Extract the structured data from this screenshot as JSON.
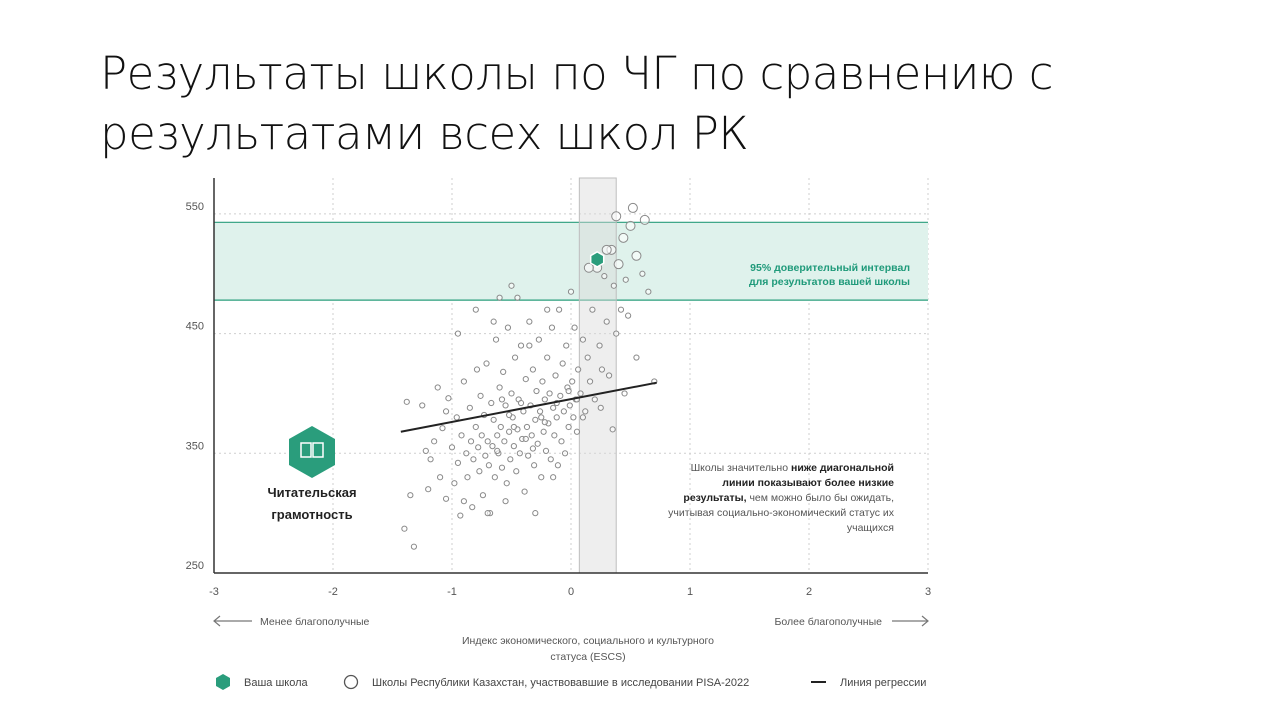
{
  "slide": {
    "title_lines": [
      "Результаты школы по ЧГ по сравнению с",
      "результатами всех школ РК"
    ]
  },
  "chart_data": {
    "type": "scatter",
    "xlim": [
      -3,
      3
    ],
    "ylim": [
      250,
      580
    ],
    "x_ticks": [
      "-3",
      "-2",
      "-1",
      "0",
      "1",
      "2",
      "3"
    ],
    "y_ticks": [
      "550",
      "450",
      "350",
      "250"
    ],
    "y_tick_values": [
      550,
      450,
      350,
      250
    ],
    "grid": true,
    "ci_band": [
      478,
      543
    ],
    "ci_label": [
      "95% доверительный интервал",
      "для результатов вашей школы"
    ],
    "escs_band": [
      0.07,
      0.38
    ],
    "your_school": {
      "x": 0.22,
      "y": 512
    },
    "regression": {
      "x": [
        -1.43,
        0.72
      ],
      "y": [
        368,
        409
      ]
    },
    "direction_left": "Менее благополучные",
    "direction_right": "Более благополучные",
    "xlabel_lines": [
      "Индекс экономического, социального и культурного",
      "статуса (ESCS)"
    ],
    "domain_label": [
      "Читательская",
      "грамотность"
    ],
    "annotation": {
      "l1a": "Школы значительно ",
      "l1b": "ниже диагональной",
      "l2": "линии показывают более низкие",
      "l3a": "результаты,",
      "l3b": " чем можно было бы ожидать,",
      "l4": "учитывая социально-экономический статус их",
      "l5": "учащихся"
    },
    "legend": {
      "your_school": "Ваша школа",
      "schools": "Школы Республики Казахстан, участвовавшие в исследовании PISA-2022",
      "regression": "Линия регрессии"
    },
    "colors": {
      "accent": "#2a9d7c",
      "band": "#dff2ec",
      "grid": "#cfcfcf",
      "point": "#8a8a8a",
      "line": "#222222"
    },
    "school_points": [
      [
        -1.38,
        393
      ],
      [
        -1.35,
        315
      ],
      [
        -1.4,
        287
      ],
      [
        -1.32,
        272
      ],
      [
        -1.25,
        390
      ],
      [
        -1.22,
        352
      ],
      [
        -1.2,
        320
      ],
      [
        -1.18,
        345
      ],
      [
        -1.15,
        360
      ],
      [
        -1.12,
        405
      ],
      [
        -1.1,
        330
      ],
      [
        -1.08,
        371
      ],
      [
        -1.05,
        312
      ],
      [
        -1.03,
        396
      ],
      [
        -1.0,
        355
      ],
      [
        -0.98,
        325
      ],
      [
        -0.96,
        380
      ],
      [
        -0.95,
        342
      ],
      [
        -0.93,
        298
      ],
      [
        -0.92,
        365
      ],
      [
        -0.9,
        410
      ],
      [
        -0.88,
        350
      ],
      [
        -0.87,
        330
      ],
      [
        -0.85,
        388
      ],
      [
        -0.84,
        360
      ],
      [
        -0.83,
        305
      ],
      [
        -0.82,
        345
      ],
      [
        -0.8,
        372
      ],
      [
        -0.79,
        420
      ],
      [
        -0.78,
        355
      ],
      [
        -0.77,
        335
      ],
      [
        -0.76,
        398
      ],
      [
        -0.75,
        365
      ],
      [
        -0.74,
        315
      ],
      [
        -0.73,
        382
      ],
      [
        -0.72,
        348
      ],
      [
        -0.71,
        425
      ],
      [
        -0.7,
        360
      ],
      [
        -0.69,
        340
      ],
      [
        -0.68,
        300
      ],
      [
        -0.67,
        392
      ],
      [
        -0.66,
        356
      ],
      [
        -0.65,
        378
      ],
      [
        -0.64,
        330
      ],
      [
        -0.63,
        445
      ],
      [
        -0.62,
        365
      ],
      [
        -0.61,
        350
      ],
      [
        -0.6,
        405
      ],
      [
        -0.59,
        372
      ],
      [
        -0.58,
        338
      ],
      [
        -0.57,
        418
      ],
      [
        -0.56,
        360
      ],
      [
        -0.55,
        390
      ],
      [
        -0.54,
        325
      ],
      [
        -0.53,
        455
      ],
      [
        -0.52,
        368
      ],
      [
        -0.51,
        345
      ],
      [
        -0.5,
        400
      ],
      [
        -0.49,
        380
      ],
      [
        -0.48,
        356
      ],
      [
        -0.47,
        430
      ],
      [
        -0.46,
        335
      ],
      [
        -0.45,
        370
      ],
      [
        -0.44,
        395
      ],
      [
        -0.43,
        350
      ],
      [
        -0.42,
        440
      ],
      [
        -0.41,
        362
      ],
      [
        -0.4,
        385
      ],
      [
        -0.39,
        318
      ],
      [
        -0.38,
        412
      ],
      [
        -0.37,
        372
      ],
      [
        -0.36,
        348
      ],
      [
        -0.35,
        460
      ],
      [
        -0.34,
        390
      ],
      [
        -0.33,
        365
      ],
      [
        -0.32,
        420
      ],
      [
        -0.31,
        340
      ],
      [
        -0.3,
        378
      ],
      [
        -0.29,
        402
      ],
      [
        -0.28,
        358
      ],
      [
        -0.27,
        445
      ],
      [
        -0.26,
        385
      ],
      [
        -0.25,
        330
      ],
      [
        -0.24,
        410
      ],
      [
        -0.23,
        368
      ],
      [
        -0.22,
        395
      ],
      [
        -0.21,
        352
      ],
      [
        -0.2,
        430
      ],
      [
        -0.19,
        375
      ],
      [
        -0.18,
        400
      ],
      [
        -0.17,
        345
      ],
      [
        -0.16,
        455
      ],
      [
        -0.15,
        388
      ],
      [
        -0.14,
        365
      ],
      [
        -0.13,
        415
      ],
      [
        -0.12,
        380
      ],
      [
        -0.11,
        340
      ],
      [
        -0.1,
        470
      ],
      [
        -0.09,
        398
      ],
      [
        -0.08,
        360
      ],
      [
        -0.07,
        425
      ],
      [
        -0.06,
        385
      ],
      [
        -0.05,
        350
      ],
      [
        -0.04,
        440
      ],
      [
        -0.03,
        405
      ],
      [
        -0.02,
        372
      ],
      [
        -0.01,
        390
      ],
      [
        0.0,
        485
      ],
      [
        0.01,
        410
      ],
      [
        0.02,
        380
      ],
      [
        0.03,
        455
      ],
      [
        0.04,
        395
      ],
      [
        0.05,
        368
      ],
      [
        0.06,
        420
      ],
      [
        0.08,
        400
      ],
      [
        0.1,
        445
      ],
      [
        0.12,
        385
      ],
      [
        0.14,
        430
      ],
      [
        0.16,
        410
      ],
      [
        0.18,
        470
      ],
      [
        0.2,
        395
      ],
      [
        0.22,
        505
      ],
      [
        0.24,
        440
      ],
      [
        0.26,
        420
      ],
      [
        0.28,
        498
      ],
      [
        0.3,
        460
      ],
      [
        0.32,
        415
      ],
      [
        0.34,
        520
      ],
      [
        0.36,
        490
      ],
      [
        0.38,
        450
      ],
      [
        0.4,
        508
      ],
      [
        0.42,
        470
      ],
      [
        0.44,
        530
      ],
      [
        0.46,
        495
      ],
      [
        0.5,
        540
      ],
      [
        0.55,
        515
      ],
      [
        0.6,
        500
      ],
      [
        0.65,
        485
      ],
      [
        0.7,
        410
      ],
      [
        -0.95,
        450
      ],
      [
        -0.8,
        470
      ],
      [
        -0.6,
        480
      ],
      [
        -0.5,
        490
      ],
      [
        -0.2,
        470
      ],
      [
        0.15,
        505
      ],
      [
        -0.7,
        300
      ],
      [
        -0.9,
        310
      ],
      [
        -1.05,
        385
      ],
      [
        -0.3,
        300
      ],
      [
        -0.55,
        310
      ],
      [
        0.1,
        380
      ],
      [
        -0.15,
        330
      ],
      [
        -0.45,
        480
      ],
      [
        -0.65,
        460
      ],
      [
        -0.35,
        440
      ],
      [
        0.05,
        395
      ],
      [
        -0.25,
        380
      ],
      [
        -0.58,
        395
      ],
      [
        -0.48,
        372
      ],
      [
        -0.38,
        362
      ],
      [
        -0.62,
        352
      ],
      [
        -0.52,
        382
      ],
      [
        -0.42,
        392
      ],
      [
        -0.32,
        354
      ],
      [
        -0.22,
        376
      ],
      [
        -0.12,
        392
      ],
      [
        -0.02,
        402
      ],
      [
        0.25,
        388
      ],
      [
        0.35,
        370
      ],
      [
        0.45,
        400
      ],
      [
        0.55,
        430
      ],
      [
        0.48,
        465
      ],
      [
        0.3,
        520
      ],
      [
        0.62,
        545
      ],
      [
        0.38,
        548
      ],
      [
        0.52,
        555
      ]
    ]
  }
}
